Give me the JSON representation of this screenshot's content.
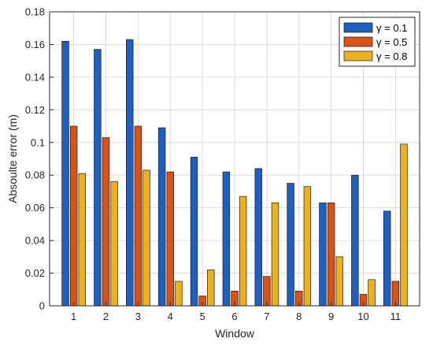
{
  "chart_data": {
    "type": "bar",
    "xlabel": "Window",
    "ylabel": "Absoulte error (m)",
    "categories": [
      "1",
      "2",
      "3",
      "4",
      "5",
      "6",
      "7",
      "8",
      "9",
      "10",
      "11"
    ],
    "ylim": [
      0,
      0.18
    ],
    "yticks": [
      0,
      0.02,
      0.04,
      0.06,
      0.08,
      0.1,
      0.12,
      0.14,
      0.16,
      0.18
    ],
    "ytick_labels": [
      "0",
      "0.02",
      "0.04",
      "0.06",
      "0.08",
      "0.1",
      "0.12",
      "0.14",
      "0.16",
      "0.18"
    ],
    "grid": true,
    "legend_position": "top-right",
    "series": [
      {
        "name": "γ = 0.1",
        "color": "#1f5fbf",
        "values": [
          0.162,
          0.157,
          0.163,
          0.109,
          0.091,
          0.082,
          0.084,
          0.075,
          0.063,
          0.08,
          0.058
        ]
      },
      {
        "name": "γ = 0.5",
        "color": "#d95319",
        "values": [
          0.11,
          0.103,
          0.11,
          0.082,
          0.006,
          0.009,
          0.018,
          0.009,
          0.063,
          0.007,
          0.015
        ]
      },
      {
        "name": "γ = 0.8",
        "color": "#edb120",
        "values": [
          0.081,
          0.076,
          0.083,
          0.015,
          0.022,
          0.067,
          0.063,
          0.073,
          0.03,
          0.016,
          0.099
        ]
      }
    ]
  }
}
